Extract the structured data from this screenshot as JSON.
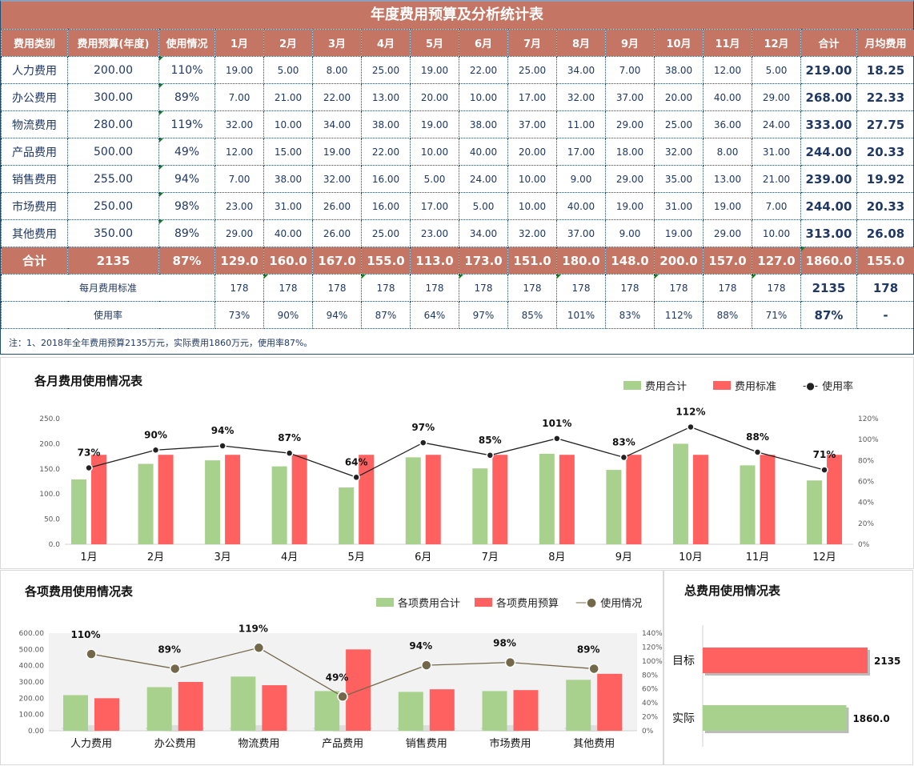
{
  "sheet": {
    "title": "年度费用预算及分析统计表",
    "headers": [
      "费用类别",
      "费用预算(年度)",
      "使用情况",
      "1月",
      "2月",
      "3月",
      "4月",
      "5月",
      "6月",
      "7月",
      "8月",
      "9月",
      "10月",
      "11月",
      "12月",
      "合计",
      "月均费用"
    ],
    "rows": [
      {
        "category": "人力费用",
        "budget": "200.00",
        "usage": "110%",
        "months": [
          "19.00",
          "5.00",
          "8.00",
          "25.00",
          "19.00",
          "22.00",
          "25.00",
          "34.00",
          "7.00",
          "38.00",
          "12.00",
          "5.00"
        ],
        "total": "219.00",
        "avg": "18.25"
      },
      {
        "category": "办公费用",
        "budget": "300.00",
        "usage": "89%",
        "months": [
          "7.00",
          "21.00",
          "22.00",
          "13.00",
          "20.00",
          "10.00",
          "17.00",
          "32.00",
          "37.00",
          "20.00",
          "40.00",
          "29.00"
        ],
        "total": "268.00",
        "avg": "22.33"
      },
      {
        "category": "物流费用",
        "budget": "280.00",
        "usage": "119%",
        "months": [
          "32.00",
          "10.00",
          "34.00",
          "38.00",
          "19.00",
          "38.00",
          "37.00",
          "11.00",
          "29.00",
          "25.00",
          "36.00",
          "24.00"
        ],
        "total": "333.00",
        "avg": "27.75"
      },
      {
        "category": "产品费用",
        "budget": "500.00",
        "usage": "49%",
        "months": [
          "12.00",
          "15.00",
          "19.00",
          "22.00",
          "10.00",
          "40.00",
          "20.00",
          "17.00",
          "18.00",
          "32.00",
          "8.00",
          "31.00"
        ],
        "total": "244.00",
        "avg": "20.33"
      },
      {
        "category": "销售费用",
        "budget": "255.00",
        "usage": "94%",
        "months": [
          "7.00",
          "38.00",
          "32.00",
          "16.00",
          "5.00",
          "24.00",
          "10.00",
          "9.00",
          "29.00",
          "35.00",
          "13.00",
          "21.00"
        ],
        "total": "239.00",
        "avg": "19.92"
      },
      {
        "category": "市场费用",
        "budget": "250.00",
        "usage": "98%",
        "months": [
          "23.00",
          "31.00",
          "26.00",
          "16.00",
          "17.00",
          "5.00",
          "10.00",
          "40.00",
          "19.00",
          "31.00",
          "19.00",
          "7.00"
        ],
        "total": "244.00",
        "avg": "20.33"
      },
      {
        "category": "其他费用",
        "budget": "350.00",
        "usage": "89%",
        "months": [
          "29.00",
          "40.00",
          "26.00",
          "25.00",
          "23.00",
          "34.00",
          "32.00",
          "37.00",
          "9.00",
          "19.00",
          "29.00",
          "10.00"
        ],
        "total": "313.00",
        "avg": "26.08"
      }
    ],
    "total_row": {
      "category": "合计",
      "budget": "2135",
      "usage": "87%",
      "months": [
        "129.0",
        "160.0",
        "167.0",
        "155.0",
        "113.0",
        "173.0",
        "151.0",
        "180.0",
        "148.0",
        "200.0",
        "157.0",
        "127.0"
      ],
      "total": "1860.0",
      "avg": "155.0"
    },
    "standard_row": {
      "label": "每月费用标准",
      "months": [
        "178",
        "178",
        "178",
        "178",
        "178",
        "178",
        "178",
        "178",
        "178",
        "178",
        "178",
        "178"
      ],
      "total": "2135",
      "avg": "178"
    },
    "rate_row": {
      "label": "使用率",
      "months": [
        "73%",
        "90%",
        "94%",
        "87%",
        "64%",
        "97%",
        "85%",
        "101%",
        "83%",
        "112%",
        "88%",
        "71%"
      ],
      "total": "87%",
      "avg": "-"
    },
    "note": "注：1、2018年全年费用预算2135万元，实际费用1860万元，使用率87%。",
    "colors": {
      "header_bg": "#c47563",
      "text": "#1f3864",
      "border": "#1f4e79",
      "marker": "#118011"
    }
  },
  "chart_data": [
    {
      "type": "bar",
      "title": "各月费用使用情况表",
      "categories": [
        "1月",
        "2月",
        "3月",
        "4月",
        "5月",
        "6月",
        "7月",
        "8月",
        "9月",
        "10月",
        "11月",
        "12月"
      ],
      "series": [
        {
          "name": "费用合计",
          "type": "bar",
          "color": "#a9d18e",
          "values": [
            129,
            160,
            167,
            155,
            113,
            173,
            151,
            180,
            148,
            200,
            157,
            127
          ]
        },
        {
          "name": "费用标准",
          "type": "bar",
          "color": "#ff6161",
          "values": [
            178,
            178,
            178,
            178,
            178,
            178,
            178,
            178,
            178,
            178,
            178,
            178
          ]
        },
        {
          "name": "使用率",
          "type": "line",
          "axis": "right",
          "color": "#222222",
          "values": [
            73,
            90,
            94,
            87,
            64,
            97,
            85,
            101,
            83,
            112,
            88,
            71
          ],
          "labels": [
            "73%",
            "90%",
            "94%",
            "87%",
            "64%",
            "97%",
            "85%",
            "101%",
            "83%",
            "112%",
            "88%",
            "71%"
          ]
        }
      ],
      "ylim": [
        0,
        250
      ],
      "yticks": [
        "0.0",
        "50.0",
        "100.0",
        "150.0",
        "200.0",
        "250.0"
      ],
      "y2lim": [
        0,
        120
      ],
      "y2ticks": [
        "0%",
        "20%",
        "40%",
        "60%",
        "80%",
        "100%",
        "120%"
      ],
      "legend": "top-right",
      "grid": false
    },
    {
      "type": "bar",
      "title": "各项费用使用情况表",
      "categories": [
        "人力费用",
        "办公费用",
        "物流费用",
        "产品费用",
        "销售费用",
        "市场费用",
        "其他费用"
      ],
      "series": [
        {
          "name": "各项费用合计",
          "type": "bar",
          "color": "#a9d18e",
          "values": [
            219,
            268,
            333,
            244,
            239,
            244,
            313
          ]
        },
        {
          "name": "各项费用预算",
          "type": "bar",
          "color": "#ff6161",
          "values": [
            200,
            300,
            280,
            500,
            255,
            250,
            350
          ]
        },
        {
          "name": "使用情况",
          "type": "line",
          "axis": "right",
          "color": "#736849",
          "values": [
            110,
            89,
            119,
            49,
            94,
            98,
            89
          ],
          "labels": [
            "110%",
            "89%",
            "119%",
            "49%",
            "94%",
            "98%",
            "89%"
          ]
        }
      ],
      "ylim": [
        0,
        600
      ],
      "yticks": [
        "0.00",
        "100.00",
        "200.00",
        "300.00",
        "400.00",
        "500.00",
        "600.00"
      ],
      "y2lim": [
        0,
        140
      ],
      "y2ticks": [
        "0%",
        "20%",
        "40%",
        "60%",
        "80%",
        "100%",
        "120%",
        "140%"
      ],
      "legend": "top-right",
      "grid": false
    },
    {
      "type": "bar",
      "orientation": "horizontal",
      "title": "总费用使用情况表",
      "categories": [
        "目标",
        "实际"
      ],
      "values": [
        2135,
        1860
      ],
      "labels": [
        "2135",
        "1860.0"
      ],
      "colors": [
        "#ff6161",
        "#a9d18e"
      ]
    }
  ]
}
